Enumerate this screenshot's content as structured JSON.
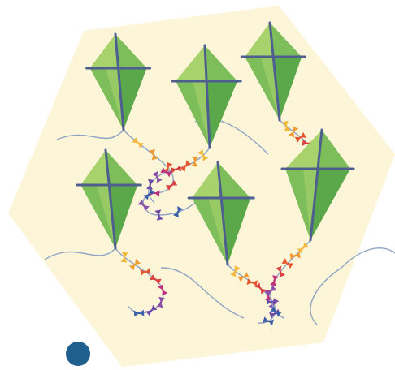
{
  "scene": {
    "kite_count": 6,
    "colors": {
      "background": "#ffffff",
      "hexagon": "#fdf5d8",
      "kite_light": "#a8d26b",
      "kite_mid": "#7dbd5a",
      "kite_dark": "#5aa84a",
      "kite_spar": "#4e5f8f",
      "kite_string": "#8fa4c4",
      "dot": "#1e5f8e"
    },
    "bow_colors": [
      "#f6b63a",
      "#f19a2f",
      "#e5562e",
      "#d94040",
      "#c0307a",
      "#8a4fa8",
      "#6b4aa8",
      "#3a5fa8",
      "#2a9c9c"
    ]
  },
  "icons": {
    "decorative_dot": "circle-icon"
  }
}
